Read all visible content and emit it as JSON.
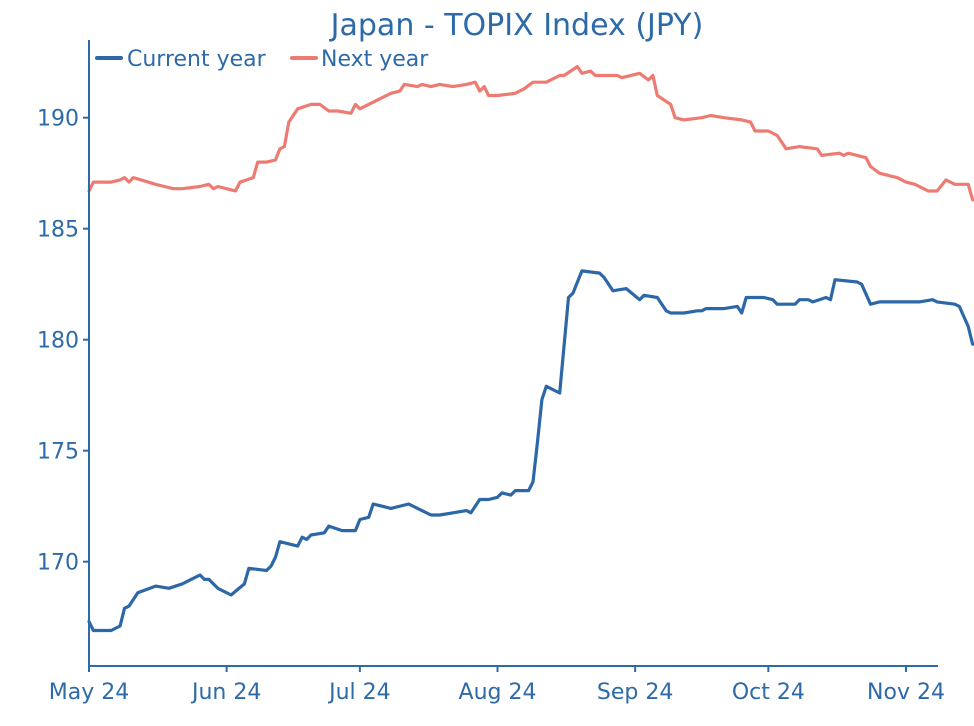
{
  "chart_data": {
    "type": "line",
    "title": "Japan - TOPIX Index (JPY)",
    "xlabel": "",
    "ylabel": "",
    "x_ticks": [
      "May 24",
      "Jun 24",
      "Jul 24",
      "Aug 24",
      "Sep 24",
      "Oct 24",
      "Nov 24"
    ],
    "y_ticks": [
      170,
      175,
      180,
      185,
      190
    ],
    "ylim": [
      165.3,
      193.5
    ],
    "legend_position": "top-left",
    "grid": false,
    "series": [
      {
        "name": "Current year",
        "color": "#2c67a7",
        "points": [
          [
            "2024-05-01",
            167.3
          ],
          [
            "2024-05-02",
            166.9
          ],
          [
            "2024-05-06",
            166.9
          ],
          [
            "2024-05-08",
            167.1
          ],
          [
            "2024-05-09",
            167.9
          ],
          [
            "2024-05-10",
            168.0
          ],
          [
            "2024-05-12",
            168.6
          ],
          [
            "2024-05-16",
            168.9
          ],
          [
            "2024-05-19",
            168.8
          ],
          [
            "2024-05-22",
            169.0
          ],
          [
            "2024-05-25",
            169.3
          ],
          [
            "2024-05-26",
            169.4
          ],
          [
            "2024-05-27",
            169.2
          ],
          [
            "2024-05-28",
            169.2
          ],
          [
            "2024-05-30",
            168.8
          ],
          [
            "2024-06-02",
            168.5
          ],
          [
            "2024-06-05",
            169.0
          ],
          [
            "2024-06-06",
            169.7
          ],
          [
            "2024-06-10",
            169.6
          ],
          [
            "2024-06-11",
            169.8
          ],
          [
            "2024-06-12",
            170.2
          ],
          [
            "2024-06-13",
            170.9
          ],
          [
            "2024-06-17",
            170.7
          ],
          [
            "2024-06-18",
            171.1
          ],
          [
            "2024-06-19",
            171.0
          ],
          [
            "2024-06-20",
            171.2
          ],
          [
            "2024-06-23",
            171.3
          ],
          [
            "2024-06-24",
            171.6
          ],
          [
            "2024-06-27",
            171.4
          ],
          [
            "2024-06-30",
            171.4
          ],
          [
            "2024-07-01",
            171.9
          ],
          [
            "2024-07-03",
            172.0
          ],
          [
            "2024-07-04",
            172.6
          ],
          [
            "2024-07-08",
            172.4
          ],
          [
            "2024-07-12",
            172.6
          ],
          [
            "2024-07-14",
            172.4
          ],
          [
            "2024-07-17",
            172.1
          ],
          [
            "2024-07-19",
            172.1
          ],
          [
            "2024-07-22",
            172.2
          ],
          [
            "2024-07-25",
            172.3
          ],
          [
            "2024-07-26",
            172.2
          ],
          [
            "2024-07-28",
            172.8
          ],
          [
            "2024-07-30",
            172.8
          ],
          [
            "2024-08-01",
            172.9
          ],
          [
            "2024-08-02",
            173.1
          ],
          [
            "2024-08-04",
            173.0
          ],
          [
            "2024-08-05",
            173.2
          ],
          [
            "2024-08-08",
            173.2
          ],
          [
            "2024-08-09",
            173.6
          ],
          [
            "2024-08-10",
            175.4
          ],
          [
            "2024-08-11",
            177.3
          ],
          [
            "2024-08-12",
            177.9
          ],
          [
            "2024-08-15",
            177.6
          ],
          [
            "2024-08-17",
            181.9
          ],
          [
            "2024-08-18",
            182.1
          ],
          [
            "2024-08-20",
            183.1
          ],
          [
            "2024-08-24",
            183.0
          ],
          [
            "2024-08-25",
            182.8
          ],
          [
            "2024-08-27",
            182.2
          ],
          [
            "2024-08-30",
            182.3
          ],
          [
            "2024-09-02",
            181.8
          ],
          [
            "2024-09-03",
            182.0
          ],
          [
            "2024-09-06",
            181.9
          ],
          [
            "2024-09-08",
            181.3
          ],
          [
            "2024-09-09",
            181.2
          ],
          [
            "2024-09-12",
            181.2
          ],
          [
            "2024-09-15",
            181.3
          ],
          [
            "2024-09-16",
            181.3
          ],
          [
            "2024-09-17",
            181.4
          ],
          [
            "2024-09-21",
            181.4
          ],
          [
            "2024-09-24",
            181.5
          ],
          [
            "2024-09-25",
            181.2
          ],
          [
            "2024-09-26",
            181.9
          ],
          [
            "2024-09-30",
            181.9
          ],
          [
            "2024-10-02",
            181.8
          ],
          [
            "2024-10-03",
            181.6
          ],
          [
            "2024-10-07",
            181.6
          ],
          [
            "2024-10-08",
            181.8
          ],
          [
            "2024-10-10",
            181.8
          ],
          [
            "2024-10-11",
            181.7
          ],
          [
            "2024-10-14",
            181.9
          ],
          [
            "2024-10-15",
            181.8
          ],
          [
            "2024-10-16",
            182.7
          ],
          [
            "2024-10-21",
            182.6
          ],
          [
            "2024-10-22",
            182.5
          ],
          [
            "2024-10-24",
            181.6
          ],
          [
            "2024-10-26",
            181.7
          ],
          [
            "2024-11-01",
            181.7
          ],
          [
            "2024-11-03",
            181.7
          ],
          [
            "2024-11-04",
            181.7
          ],
          [
            "2024-11-07",
            181.8
          ],
          [
            "2024-11-08",
            181.7
          ],
          [
            "2024-11-12",
            181.6
          ],
          [
            "2024-11-13",
            181.5
          ],
          [
            "2024-11-15",
            180.6
          ],
          [
            "2024-11-16",
            179.8
          ],
          [
            "2024-11-17",
            179.8
          ]
        ]
      },
      {
        "name": "Next year",
        "color": "#ee7b72",
        "points": [
          [
            "2024-05-01",
            186.7
          ],
          [
            "2024-05-02",
            187.1
          ],
          [
            "2024-05-06",
            187.1
          ],
          [
            "2024-05-08",
            187.2
          ],
          [
            "2024-05-09",
            187.3
          ],
          [
            "2024-05-10",
            187.1
          ],
          [
            "2024-05-11",
            187.3
          ],
          [
            "2024-05-16",
            187.0
          ],
          [
            "2024-05-18",
            186.9
          ],
          [
            "2024-05-20",
            186.8
          ],
          [
            "2024-05-22",
            186.8
          ],
          [
            "2024-05-26",
            186.9
          ],
          [
            "2024-05-28",
            187.0
          ],
          [
            "2024-05-29",
            186.8
          ],
          [
            "2024-05-30",
            186.9
          ],
          [
            "2024-06-01",
            186.8
          ],
          [
            "2024-06-03",
            186.7
          ],
          [
            "2024-06-04",
            187.1
          ],
          [
            "2024-06-07",
            187.3
          ],
          [
            "2024-06-08",
            188.0
          ],
          [
            "2024-06-10",
            188.0
          ],
          [
            "2024-06-12",
            188.1
          ],
          [
            "2024-06-13",
            188.6
          ],
          [
            "2024-06-14",
            188.7
          ],
          [
            "2024-06-15",
            189.8
          ],
          [
            "2024-06-17",
            190.4
          ],
          [
            "2024-06-20",
            190.6
          ],
          [
            "2024-06-22",
            190.6
          ],
          [
            "2024-06-24",
            190.3
          ],
          [
            "2024-06-26",
            190.3
          ],
          [
            "2024-06-29",
            190.2
          ],
          [
            "2024-06-30",
            190.6
          ],
          [
            "2024-07-01",
            190.4
          ],
          [
            "2024-07-05",
            190.8
          ],
          [
            "2024-07-06",
            190.9
          ],
          [
            "2024-07-08",
            191.1
          ],
          [
            "2024-07-10",
            191.2
          ],
          [
            "2024-07-11",
            191.5
          ],
          [
            "2024-07-14",
            191.4
          ],
          [
            "2024-07-15",
            191.5
          ],
          [
            "2024-07-17",
            191.4
          ],
          [
            "2024-07-19",
            191.5
          ],
          [
            "2024-07-22",
            191.4
          ],
          [
            "2024-07-25",
            191.5
          ],
          [
            "2024-07-27",
            191.6
          ],
          [
            "2024-07-28",
            191.2
          ],
          [
            "2024-07-29",
            191.4
          ],
          [
            "2024-07-30",
            191.0
          ],
          [
            "2024-08-01",
            191.0
          ],
          [
            "2024-08-05",
            191.1
          ],
          [
            "2024-08-07",
            191.3
          ],
          [
            "2024-08-09",
            191.6
          ],
          [
            "2024-08-12",
            191.6
          ],
          [
            "2024-08-15",
            191.9
          ],
          [
            "2024-08-16",
            191.9
          ],
          [
            "2024-08-19",
            192.3
          ],
          [
            "2024-08-20",
            192.0
          ],
          [
            "2024-08-22",
            192.1
          ],
          [
            "2024-08-23",
            191.9
          ],
          [
            "2024-08-28",
            191.9
          ],
          [
            "2024-08-29",
            191.8
          ],
          [
            "2024-09-02",
            192.0
          ],
          [
            "2024-09-04",
            191.7
          ],
          [
            "2024-09-05",
            191.9
          ],
          [
            "2024-09-06",
            191.0
          ],
          [
            "2024-09-09",
            190.6
          ],
          [
            "2024-09-10",
            190.0
          ],
          [
            "2024-09-12",
            189.9
          ],
          [
            "2024-09-16",
            190.0
          ],
          [
            "2024-09-18",
            190.1
          ],
          [
            "2024-09-21",
            190.0
          ],
          [
            "2024-09-25",
            189.9
          ],
          [
            "2024-09-27",
            189.8
          ],
          [
            "2024-09-28",
            189.4
          ],
          [
            "2024-10-01",
            189.4
          ],
          [
            "2024-10-03",
            189.2
          ],
          [
            "2024-10-05",
            188.6
          ],
          [
            "2024-10-08",
            188.7
          ],
          [
            "2024-10-12",
            188.6
          ],
          [
            "2024-10-13",
            188.3
          ],
          [
            "2024-10-17",
            188.4
          ],
          [
            "2024-10-18",
            188.3
          ],
          [
            "2024-10-19",
            188.4
          ],
          [
            "2024-10-23",
            188.2
          ],
          [
            "2024-10-24",
            187.8
          ],
          [
            "2024-10-26",
            187.5
          ],
          [
            "2024-10-30",
            187.3
          ],
          [
            "2024-11-01",
            187.1
          ],
          [
            "2024-11-03",
            187.0
          ],
          [
            "2024-11-06",
            186.7
          ],
          [
            "2024-11-08",
            186.7
          ],
          [
            "2024-11-10",
            187.2
          ],
          [
            "2024-11-12",
            187.0
          ],
          [
            "2024-11-15",
            187.0
          ],
          [
            "2024-11-16",
            186.3
          ],
          [
            "2024-11-17",
            186.3
          ]
        ]
      }
    ]
  }
}
